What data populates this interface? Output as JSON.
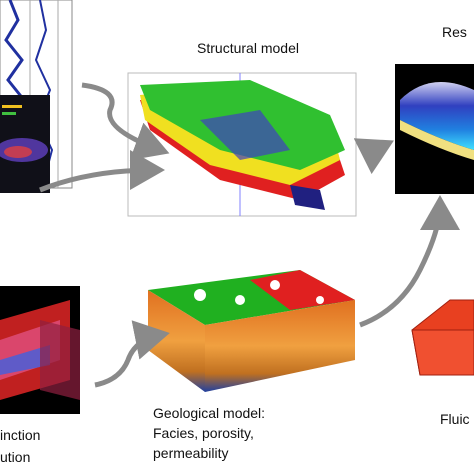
{
  "labels": {
    "structural": "Structural model",
    "reservoir": "Res",
    "geological": [
      "Geological model:",
      "Facies, porosity,",
      "permeability"
    ],
    "seismic": [
      "inction",
      "ution"
    ],
    "fluid": "Fluic"
  }
}
